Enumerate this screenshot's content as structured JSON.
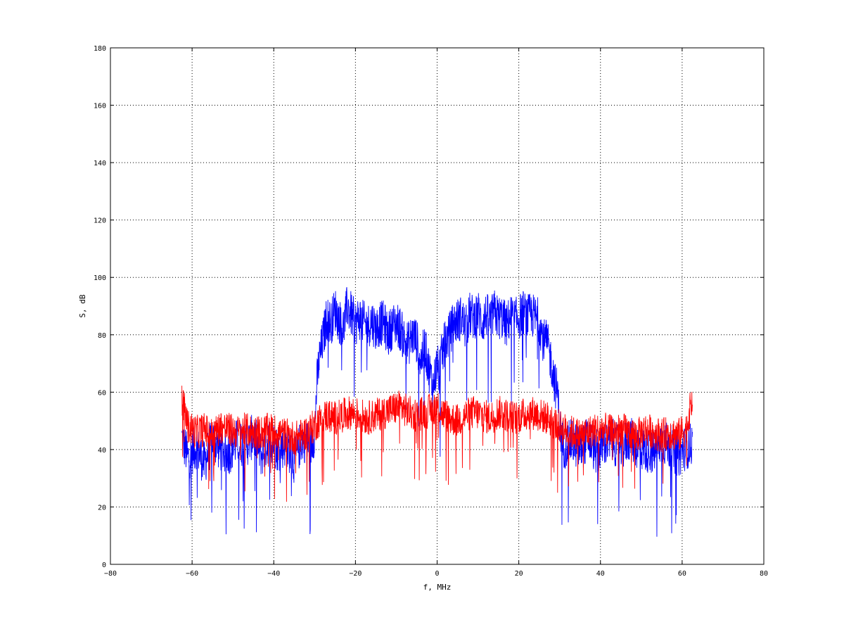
{
  "chart_data": {
    "type": "line",
    "title": "",
    "xlabel": "f, MHz",
    "ylabel": "S, dB",
    "xlim": [
      -80,
      80
    ],
    "ylim": [
      0,
      180
    ],
    "xticks": [
      -80,
      -60,
      -40,
      -20,
      0,
      20,
      40,
      60,
      80
    ],
    "yticks": [
      0,
      20,
      40,
      60,
      80,
      100,
      120,
      140,
      160,
      180
    ],
    "grid": true,
    "grid_style": "dotted",
    "series": [
      {
        "color": "#0000ff",
        "x": [
          -62.5,
          -61,
          -59,
          -57,
          -55,
          -53,
          -51,
          -49,
          -47,
          -45,
          -43,
          -41,
          -39,
          -37,
          -35,
          -33,
          -31,
          -30,
          -29.5,
          -29,
          -28,
          -27,
          -26,
          -25,
          -24,
          -23,
          -22,
          -21,
          -20,
          -19,
          -18,
          -17,
          -16,
          -15,
          -14,
          -13,
          -12,
          -11,
          -10,
          -9,
          -8,
          -7,
          -6,
          -5,
          -4,
          -3,
          -2,
          -1,
          -0.5,
          0,
          0.5,
          1,
          2,
          3,
          4,
          5,
          6,
          7,
          8,
          9,
          10,
          11,
          12,
          13,
          14,
          15,
          16,
          17,
          18,
          19,
          20,
          21,
          22,
          23,
          24,
          25,
          26,
          27,
          28,
          29,
          29.5,
          30,
          31,
          33,
          35,
          37,
          39,
          41,
          43,
          45,
          47,
          49,
          51,
          53,
          55,
          57,
          59,
          61,
          62.5
        ],
        "y": [
          44,
          37,
          41,
          35,
          44,
          40,
          39,
          43,
          41,
          45,
          38,
          44,
          40,
          42,
          36,
          44,
          41,
          46,
          62,
          70,
          78,
          86,
          84,
          89,
          85,
          82,
          90,
          87,
          84,
          86,
          84,
          83,
          85,
          82,
          84,
          84,
          80,
          83,
          84,
          82,
          78,
          77,
          80,
          78,
          71,
          76,
          68,
          62,
          66,
          70,
          66,
          72,
          78,
          80,
          84,
          85,
          86,
          82,
          87,
          86,
          88,
          84,
          87,
          85,
          88,
          86,
          86,
          83,
          87,
          85,
          86,
          88,
          86,
          87,
          86,
          85,
          78,
          77,
          70,
          62,
          60,
          48,
          41,
          43,
          40,
          44,
          39,
          42,
          43,
          40,
          44,
          41,
          40,
          39,
          43,
          41,
          38,
          41,
          42
        ],
        "noise": 8
      },
      {
        "color": "#ff0000",
        "x": [
          -62.5,
          -61,
          -59,
          -57,
          -55,
          -53,
          -51,
          -49,
          -47,
          -45,
          -43,
          -41,
          -39,
          -37,
          -35,
          -33,
          -31,
          -29,
          -27,
          -25,
          -23,
          -21,
          -19,
          -17,
          -15,
          -13,
          -11,
          -9,
          -7,
          -5,
          -3,
          -1,
          0,
          1,
          3,
          5,
          7,
          9,
          11,
          13,
          15,
          17,
          19,
          21,
          23,
          25,
          27,
          29,
          31,
          33,
          35,
          37,
          39,
          41,
          43,
          45,
          47,
          49,
          51,
          53,
          55,
          57,
          59,
          61,
          62.5
        ],
        "y": [
          58,
          48,
          46,
          47,
          45,
          48,
          47,
          46,
          47,
          46,
          46,
          47,
          46,
          45,
          44,
          45,
          47,
          50,
          52,
          51,
          52,
          53,
          52,
          51,
          52,
          53,
          54,
          55,
          53,
          52,
          53,
          54,
          56,
          53,
          51,
          50,
          52,
          53,
          52,
          51,
          53,
          52,
          51,
          52,
          53,
          52,
          51,
          49,
          47,
          46,
          45,
          46,
          47,
          47,
          46,
          47,
          46,
          45,
          47,
          46,
          45,
          46,
          45,
          47,
          58
        ],
        "noise": 6
      }
    ]
  }
}
